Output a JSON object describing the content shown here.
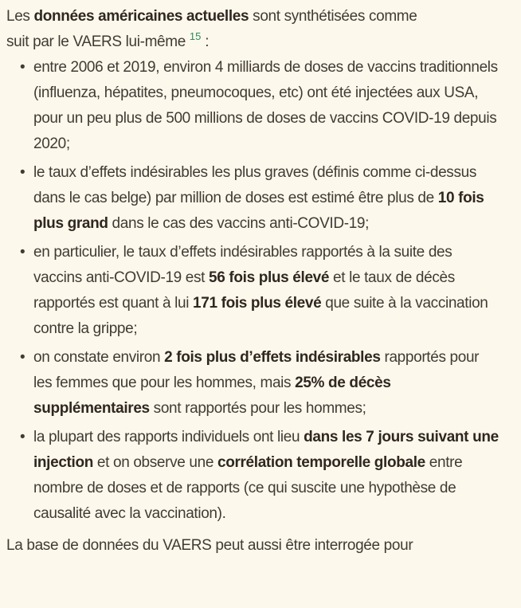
{
  "theme": {
    "background": "#fcf8ec",
    "text_color": "#423b34",
    "bold_color": "#2f2720",
    "footnote_link_color": "#2f8a5e"
  },
  "content": {
    "intro": {
      "segments": [
        {
          "text": "Les "
        },
        {
          "text": "données américaines actuelles",
          "bold": true
        },
        {
          "text": " sont synthétisées comme suit par le VAERS lui-même "
        },
        {
          "text": "15",
          "footnote": true
        },
        {
          "text": " :"
        }
      ]
    },
    "bullet_list": [
      {
        "segments": [
          {
            "text": "entre 2006 et 2019, environ 4 milliards de doses de vaccins traditionnels (influenza, hépatites, pneumocoques, etc) ont été injectées aux USA, pour un peu plus de 500 millions de doses de vaccins COVID-19 depuis 2020;"
          }
        ]
      },
      {
        "segments": [
          {
            "text": "le taux d’effets indésirables les plus graves (définis comme ci-dessus dans le cas belge) par million de doses est estimé être plus de "
          },
          {
            "text": "10 fois plus grand",
            "bold": true
          },
          {
            "text": " dans le cas des vaccins anti-COVID-19;"
          }
        ]
      },
      {
        "segments": [
          {
            "text": "en particulier, le taux d’effets indésirables rapportés à la suite des vaccins anti-COVID-19 est "
          },
          {
            "text": "56 fois plus élevé",
            "bold": true
          },
          {
            "text": " et le taux de décès rapportés est quant à lui "
          },
          {
            "text": "171 fois plus élevé",
            "bold": true
          },
          {
            "text": " que suite à la vaccination contre la grippe;"
          }
        ]
      },
      {
        "segments": [
          {
            "text": "on constate environ "
          },
          {
            "text": "2 fois plus d’effets indésirables",
            "bold": true
          },
          {
            "text": " rapportés pour les femmes que pour les hommes, mais "
          },
          {
            "text": "25% de décès supplémentaires",
            "bold": true
          },
          {
            "text": " sont rapportés pour les hommes;"
          }
        ]
      },
      {
        "segments": [
          {
            "text": "la plupart des rapports individuels ont lieu "
          },
          {
            "text": "dans les 7 jours suivant une injection",
            "bold": true
          },
          {
            "text": " et on observe une "
          },
          {
            "text": "corrélation temporelle globale",
            "bold": true
          },
          {
            "text": " entre nombre de doses et de rapports (ce qui suscite une hypothèse de causalité avec la vaccination)."
          }
        ]
      }
    ],
    "closing_paragraph": {
      "segments": [
        {
          "text": "La base de données du VAERS peut aussi être interrogée pour"
        }
      ]
    }
  }
}
